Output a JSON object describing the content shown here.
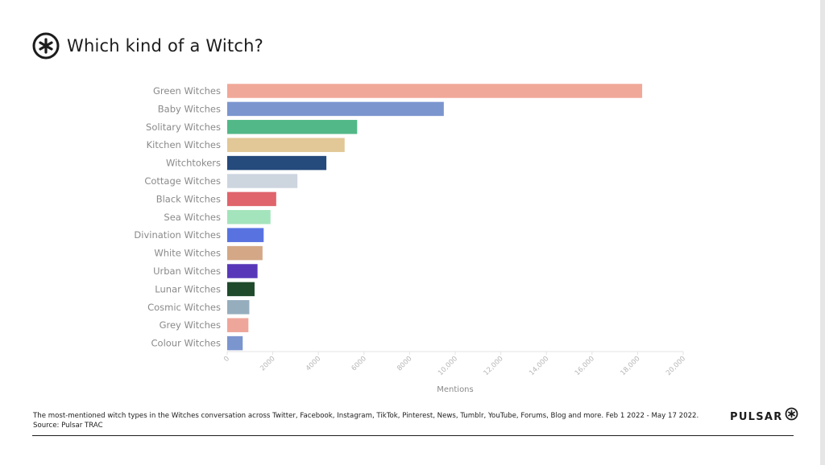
{
  "header": {
    "title": "Which kind of a Witch?",
    "icon": "asterisk-circle-icon"
  },
  "chart_data": {
    "type": "bar",
    "orientation": "horizontal",
    "title": "Which kind of a Witch?",
    "xlabel": "Mentions",
    "ylabel": "",
    "xlim": [
      0,
      20000
    ],
    "ticks": [
      "0",
      "2000",
      "4000",
      "6000",
      "8000",
      "10,000",
      "12,000",
      "14,000",
      "16,000",
      "18,000",
      "20,000"
    ],
    "tick_values": [
      0,
      2000,
      4000,
      6000,
      8000,
      10000,
      12000,
      14000,
      16000,
      18000,
      20000
    ],
    "grid": false,
    "categories": [
      "Green Witches",
      "Baby Witches",
      "Solitary Witches",
      "Kitchen Witches",
      "Witchtokers",
      "Cottage Witches",
      "Black Witches",
      "Sea Witches",
      "Divination Witches",
      "White Witches",
      "Urban Witches",
      "Lunar Witches",
      "Cosmic Witches",
      "Grey Witches",
      "Colour Witches"
    ],
    "values": [
      18200,
      9500,
      5700,
      5150,
      4350,
      3080,
      2150,
      1900,
      1600,
      1550,
      1330,
      1200,
      970,
      930,
      680
    ],
    "colors": [
      "#f0a899",
      "#7b95cf",
      "#52b887",
      "#e2c797",
      "#254a7c",
      "#cdd5df",
      "#e0646b",
      "#a4e4bc",
      "#5873e0",
      "#d4a886",
      "#5838b8",
      "#1f4a2b",
      "#95adbd",
      "#eea69b",
      "#7b95cf"
    ]
  },
  "footer": {
    "description": "The most-mentioned witch types in the Witches conversation across Twitter, Facebook, Instagram, TikTok, Pinterest, News, Tumblr, YouTube, Forums, Blog and more. Feb 1 2022 - May 17 2022.",
    "source": "Source: Pulsar TRAC"
  },
  "brand": {
    "name": "PULSAR",
    "icon": "asterisk-circle-icon"
  }
}
